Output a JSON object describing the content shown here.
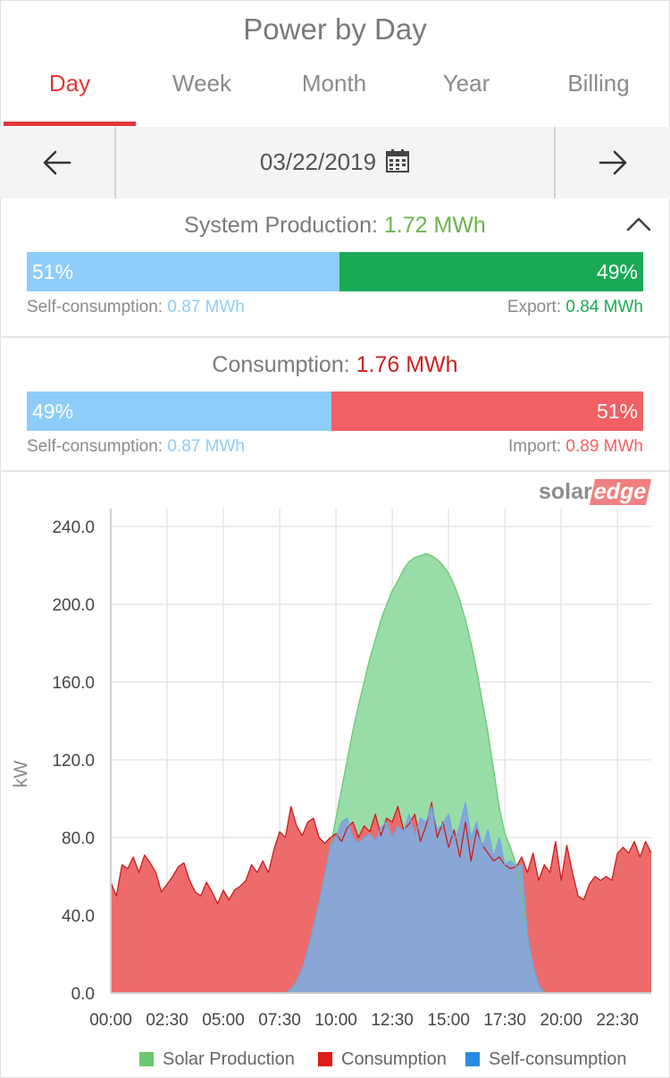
{
  "header": {
    "title": "Power by Day"
  },
  "tabs": [
    {
      "label": "Day",
      "active": true
    },
    {
      "label": "Week",
      "active": false
    },
    {
      "label": "Month",
      "active": false
    },
    {
      "label": "Year",
      "active": false
    },
    {
      "label": "Billing",
      "active": false
    }
  ],
  "date_nav": {
    "date": "03/22/2019",
    "prev_icon": "arrow-left-icon",
    "next_icon": "arrow-right-icon",
    "calendar_icon": "calendar-icon"
  },
  "production": {
    "label": "System Production:",
    "value": "1.72 MWh",
    "self_pct": "51%",
    "export_pct": "49%",
    "self_fraction": 0.507,
    "self_label": "Self-consumption:",
    "self_value": "0.87 MWh",
    "export_label": "Export:",
    "export_value": "0.84 MWh",
    "collapse_icon": "chevron-up-icon"
  },
  "consumption": {
    "label": "Consumption:",
    "value": "1.76 MWh",
    "self_pct": "49%",
    "import_pct": "51%",
    "self_fraction": 0.494,
    "self_label": "Self-consumption:",
    "self_value": "0.87 MWh",
    "import_label": "Import:",
    "import_value": "0.89 MWh"
  },
  "logo": {
    "part1": "solar",
    "part2": "edge"
  },
  "colors": {
    "accent": "#e0393b",
    "production_green": "#6cb54a",
    "export_green": "#1aaa55",
    "self_blue": "#8ecdf9",
    "consumption_red": "#cc2222",
    "import_red": "#f06065"
  },
  "chart_data": {
    "type": "area",
    "ylabel": "kW",
    "ylim": [
      0,
      240
    ],
    "yticks": [
      "0.0",
      "40.0",
      "80.0",
      "120.0",
      "160.0",
      "200.0",
      "240.0"
    ],
    "xticks": [
      "00:00",
      "02:30",
      "05:00",
      "07:30",
      "10:00",
      "12:30",
      "15:00",
      "17:30",
      "20:00",
      "22:30"
    ],
    "x_hours": [
      0,
      0.25,
      0.5,
      0.75,
      1,
      1.25,
      1.5,
      1.75,
      2,
      2.25,
      2.5,
      2.75,
      3,
      3.25,
      3.5,
      3.75,
      4,
      4.25,
      4.5,
      4.75,
      5,
      5.25,
      5.5,
      5.75,
      6,
      6.25,
      6.5,
      6.75,
      7,
      7.25,
      7.5,
      7.75,
      8,
      8.25,
      8.5,
      8.75,
      9,
      9.25,
      9.5,
      9.75,
      10,
      10.25,
      10.5,
      10.75,
      11,
      11.25,
      11.5,
      11.75,
      12,
      12.25,
      12.5,
      12.75,
      13,
      13.25,
      13.5,
      13.75,
      14,
      14.25,
      14.5,
      14.75,
      15,
      15.25,
      15.5,
      15.75,
      16,
      16.25,
      16.5,
      16.75,
      17,
      17.25,
      17.5,
      17.75,
      18,
      18.25,
      18.5,
      18.75,
      19,
      19.25,
      19.5,
      19.75,
      20,
      20.25,
      20.5,
      20.75,
      21,
      21.25,
      21.5,
      21.75,
      22,
      22.25,
      22.5,
      22.75,
      23,
      23.25,
      23.5,
      23.75,
      24
    ],
    "series": [
      {
        "name": "Solar Production",
        "color": "#6cc76e",
        "values": [
          0,
          0,
          0,
          0,
          0,
          0,
          0,
          0,
          0,
          0,
          0,
          0,
          0,
          0,
          0,
          0,
          0,
          0,
          0,
          0,
          0,
          0,
          0,
          0,
          0,
          0,
          0,
          0,
          0,
          0,
          0,
          0,
          2,
          6,
          12,
          22,
          34,
          46,
          60,
          75,
          90,
          105,
          120,
          135,
          148,
          160,
          172,
          182,
          192,
          200,
          207,
          212,
          218,
          222,
          224,
          225,
          226,
          225,
          223,
          220,
          216,
          210,
          202,
          192,
          180,
          166,
          150,
          134,
          115,
          96,
          82,
          75,
          66,
          50,
          30,
          14,
          4,
          0,
          0,
          0,
          0,
          0,
          0,
          0,
          0,
          0,
          0,
          0,
          0,
          0,
          0,
          0,
          0,
          0,
          0,
          0,
          0
        ]
      },
      {
        "name": "Consumption",
        "color": "#e01b1b",
        "values": [
          57,
          50,
          66,
          64,
          70,
          62,
          71,
          67,
          62,
          52,
          56,
          60,
          65,
          67,
          58,
          52,
          50,
          57,
          52,
          46,
          53,
          48,
          53,
          55,
          58,
          66,
          62,
          68,
          62,
          74,
          83,
          80,
          96,
          86,
          81,
          88,
          90,
          80,
          77,
          80,
          82,
          78,
          85,
          88,
          80,
          86,
          83,
          92,
          81,
          90,
          88,
          96,
          84,
          87,
          92,
          78,
          86,
          98,
          80,
          88,
          75,
          84,
          70,
          88,
          68,
          84,
          76,
          72,
          68,
          70,
          66,
          64,
          65,
          70,
          62,
          72,
          58,
          66,
          62,
          78,
          58,
          76,
          62,
          50,
          48,
          56,
          60,
          58,
          60,
          58,
          72,
          75,
          72,
          78,
          70,
          78,
          72
        ]
      },
      {
        "name": "Self-consumption",
        "color": "#2a8ae0",
        "values": [
          0,
          0,
          0,
          0,
          0,
          0,
          0,
          0,
          0,
          0,
          0,
          0,
          0,
          0,
          0,
          0,
          0,
          0,
          0,
          0,
          0,
          0,
          0,
          0,
          0,
          0,
          0,
          0,
          0,
          0,
          0,
          0,
          2,
          6,
          12,
          22,
          34,
          46,
          60,
          75,
          80,
          88,
          90,
          80,
          77,
          80,
          82,
          78,
          85,
          88,
          80,
          86,
          83,
          92,
          81,
          90,
          88,
          96,
          84,
          87,
          92,
          78,
          86,
          98,
          80,
          88,
          75,
          84,
          70,
          80,
          66,
          68,
          65,
          66,
          30,
          14,
          4,
          0,
          0,
          0,
          0,
          0,
          0,
          0,
          0,
          0,
          0,
          0,
          0,
          0,
          0,
          0,
          0,
          0,
          0,
          0,
          0
        ]
      }
    ]
  }
}
